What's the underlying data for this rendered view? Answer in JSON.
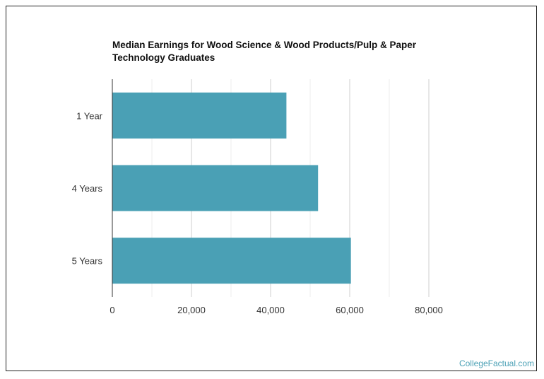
{
  "chart_data": {
    "type": "bar",
    "orientation": "horizontal",
    "title": "Median Earnings for Wood Science & Wood Products/Pulp & Paper Technology Graduates",
    "categories": [
      "1 Year",
      "4 Years",
      "5 Years"
    ],
    "values": [
      44000,
      52000,
      60300
    ],
    "xlim": [
      0,
      80000
    ],
    "x_ticks": [
      0,
      20000,
      40000,
      60000,
      80000
    ],
    "x_tick_labels": [
      "0",
      "20,000",
      "40,000",
      "60,000",
      "80,000"
    ],
    "grid": true,
    "bar_color": "#4aa0b5"
  },
  "watermark": "CollegeFactual.com"
}
